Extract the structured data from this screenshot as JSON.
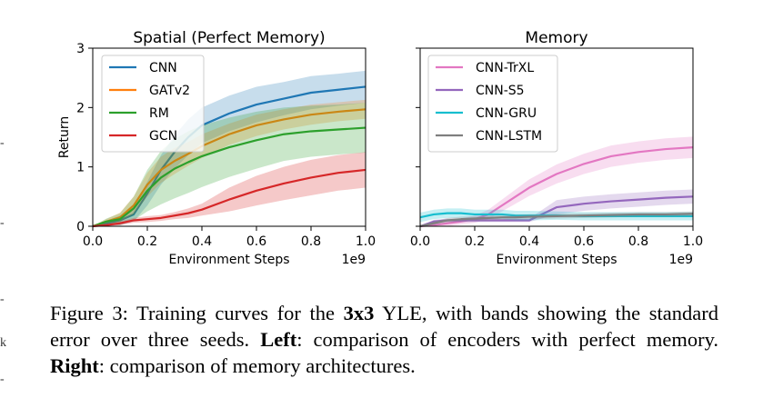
{
  "chart_data": [
    {
      "type": "line",
      "title": "Spatial (Perfect Memory)",
      "xlabel": "Environment Steps",
      "ylabel": "Return",
      "x_multiplier": "1e9",
      "xlim": [
        0.0,
        1.0
      ],
      "ylim": [
        0,
        3
      ],
      "xticks": [
        "0.0",
        "0.2",
        "0.4",
        "0.6",
        "0.8",
        "1.0"
      ],
      "yticks": [
        "0",
        "1",
        "2",
        "3"
      ],
      "legend_position": "top-left",
      "x": [
        0.0,
        0.05,
        0.1,
        0.15,
        0.2,
        0.25,
        0.3,
        0.35,
        0.4,
        0.5,
        0.6,
        0.7,
        0.8,
        0.9,
        1.0
      ],
      "series": [
        {
          "name": "CNN",
          "color": "#1f77b4",
          "values": [
            0.0,
            0.05,
            0.1,
            0.2,
            0.55,
            0.95,
            1.25,
            1.5,
            1.7,
            1.9,
            2.05,
            2.15,
            2.25,
            2.3,
            2.35
          ],
          "band": [
            0.0,
            0.04,
            0.08,
            0.12,
            0.2,
            0.25,
            0.28,
            0.3,
            0.3,
            0.3,
            0.3,
            0.28,
            0.28,
            0.27,
            0.27
          ]
        },
        {
          "name": "GATv2",
          "color": "#ff7f0e",
          "values": [
            0.0,
            0.08,
            0.15,
            0.35,
            0.7,
            0.95,
            1.1,
            1.22,
            1.35,
            1.55,
            1.7,
            1.8,
            1.88,
            1.93,
            1.97
          ],
          "band": [
            0.0,
            0.04,
            0.08,
            0.15,
            0.2,
            0.22,
            0.22,
            0.2,
            0.2,
            0.18,
            0.18,
            0.17,
            0.17,
            0.16,
            0.16
          ]
        },
        {
          "name": "RM",
          "color": "#2ca02c",
          "values": [
            0.0,
            0.08,
            0.12,
            0.3,
            0.6,
            0.82,
            0.97,
            1.08,
            1.18,
            1.33,
            1.45,
            1.55,
            1.6,
            1.63,
            1.66
          ],
          "band": [
            0.0,
            0.05,
            0.1,
            0.2,
            0.35,
            0.45,
            0.5,
            0.52,
            0.52,
            0.5,
            0.48,
            0.45,
            0.43,
            0.42,
            0.42
          ]
        },
        {
          "name": "GCN",
          "color": "#d62728",
          "values": [
            0.0,
            0.02,
            0.05,
            0.1,
            0.12,
            0.14,
            0.18,
            0.22,
            0.28,
            0.45,
            0.6,
            0.72,
            0.82,
            0.9,
            0.95
          ],
          "band": [
            0.0,
            0.02,
            0.03,
            0.04,
            0.05,
            0.05,
            0.06,
            0.08,
            0.1,
            0.2,
            0.25,
            0.28,
            0.3,
            0.3,
            0.3
          ]
        }
      ]
    },
    {
      "type": "line",
      "title": "Memory",
      "xlabel": "Environment Steps",
      "ylabel": "",
      "x_multiplier": "1e9",
      "xlim": [
        0.0,
        1.0
      ],
      "ylim": [
        0,
        3
      ],
      "xticks": [
        "0.0",
        "0.2",
        "0.4",
        "0.6",
        "0.8",
        "1.0"
      ],
      "yticks": [
        "0",
        "1",
        "2",
        "3"
      ],
      "show_ytick_labels": false,
      "legend_position": "top-left",
      "x": [
        0.0,
        0.05,
        0.1,
        0.15,
        0.2,
        0.25,
        0.3,
        0.35,
        0.4,
        0.5,
        0.6,
        0.7,
        0.8,
        0.9,
        1.0
      ],
      "series": [
        {
          "name": "CNN-TrXL",
          "color": "#e377c2",
          "values": [
            0.0,
            0.02,
            0.05,
            0.08,
            0.12,
            0.2,
            0.35,
            0.5,
            0.65,
            0.88,
            1.05,
            1.18,
            1.25,
            1.3,
            1.33
          ],
          "band": [
            0.0,
            0.04,
            0.05,
            0.05,
            0.06,
            0.08,
            0.1,
            0.12,
            0.14,
            0.16,
            0.17,
            0.18,
            0.18,
            0.18,
            0.18
          ]
        },
        {
          "name": "CNN-S5",
          "color": "#9467bd",
          "values": [
            0.0,
            0.08,
            0.1,
            0.1,
            0.1,
            0.1,
            0.1,
            0.1,
            0.1,
            0.32,
            0.38,
            0.42,
            0.45,
            0.48,
            0.5
          ],
          "band": [
            0.0,
            0.03,
            0.03,
            0.03,
            0.03,
            0.03,
            0.03,
            0.03,
            0.03,
            0.12,
            0.12,
            0.12,
            0.12,
            0.12,
            0.12
          ]
        },
        {
          "name": "CNN-GRU",
          "color": "#17becf",
          "values": [
            0.15,
            0.2,
            0.22,
            0.22,
            0.2,
            0.2,
            0.2,
            0.18,
            0.18,
            0.18,
            0.17,
            0.17,
            0.17,
            0.17,
            0.17
          ],
          "band": [
            0.08,
            0.08,
            0.08,
            0.08,
            0.08,
            0.08,
            0.08,
            0.08,
            0.08,
            0.07,
            0.07,
            0.07,
            0.07,
            0.07,
            0.07
          ]
        },
        {
          "name": "CNN-LSTM",
          "color": "#7f7f7f",
          "values": [
            0.0,
            0.05,
            0.1,
            0.12,
            0.13,
            0.14,
            0.15,
            0.15,
            0.16,
            0.17,
            0.18,
            0.19,
            0.2,
            0.2,
            0.21
          ],
          "band": [
            0.0,
            0.03,
            0.04,
            0.04,
            0.04,
            0.04,
            0.04,
            0.04,
            0.04,
            0.04,
            0.04,
            0.04,
            0.04,
            0.04,
            0.04
          ]
        }
      ]
    }
  ],
  "caption": {
    "lead": "Figure 3: Training curves for the ",
    "bold1": "3x3",
    "mid1": " YLE, with bands showing the standard error over three seeds. ",
    "bold2": "Left",
    "mid2": ": comparison of encoders with perfect memory. ",
    "bold3": "Right",
    "tail": ": comparison of memory architectures."
  },
  "margin_marks": [
    "-",
    "-",
    "-",
    "k",
    "-"
  ]
}
